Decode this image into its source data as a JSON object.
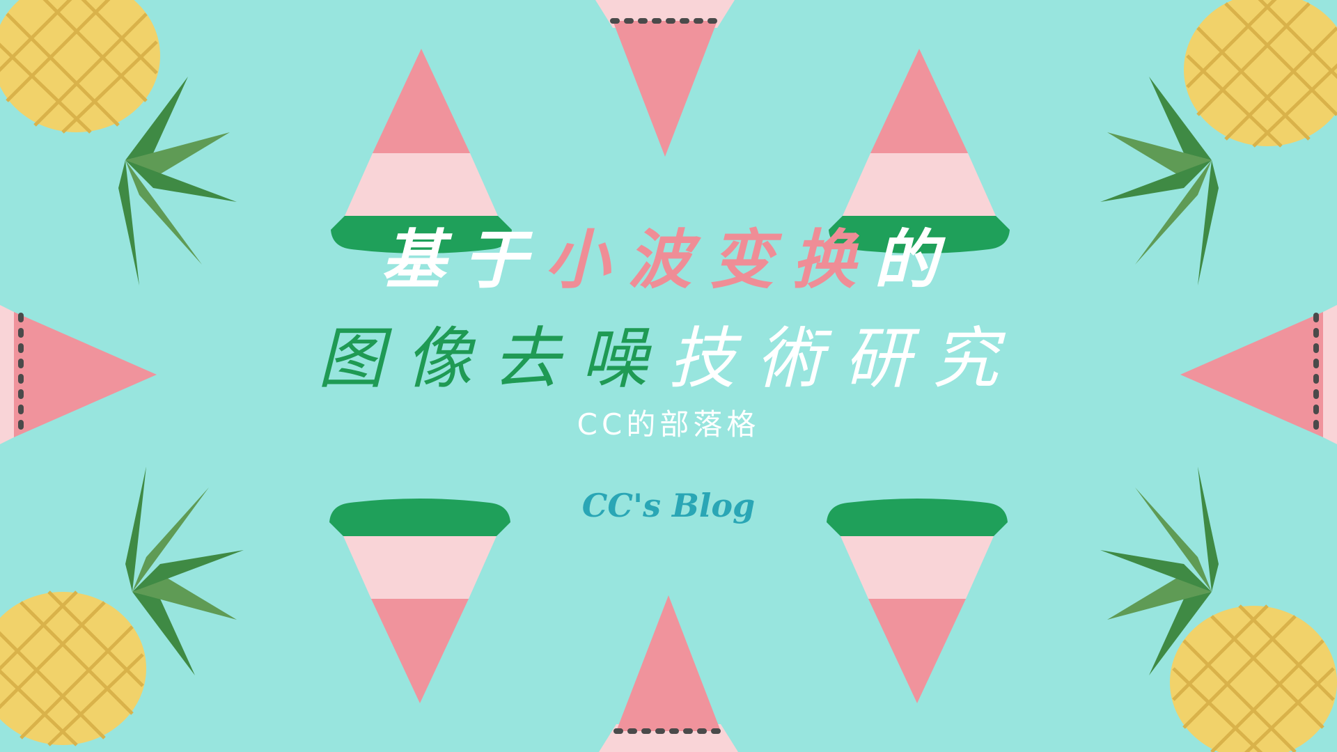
{
  "cover": {
    "title_line1": [
      {
        "text": "基于",
        "tone": "white"
      },
      {
        "text": "小波变换",
        "tone": "pink"
      },
      {
        "text": "的",
        "tone": "white"
      }
    ],
    "title_line2": [
      {
        "text": "图像去噪",
        "tone": "green"
      },
      {
        "text": "技術研究",
        "tone": "white"
      }
    ],
    "subtitle": "CC的部落格",
    "signature": "CC's Blog"
  },
  "colors": {
    "background": "#98e5de",
    "white": "#ffffff",
    "pink": "#ef8d96",
    "green": "#1f9a54",
    "blog": "#2aa6b5",
    "melon_pink": "#f0939c",
    "melon_light": "#f9d4d7",
    "melon_rind": "#1fa05a",
    "pineapple": "#f1d26a",
    "leaf_dark": "#3f8a44",
    "leaf_light": "#5f9b55"
  }
}
